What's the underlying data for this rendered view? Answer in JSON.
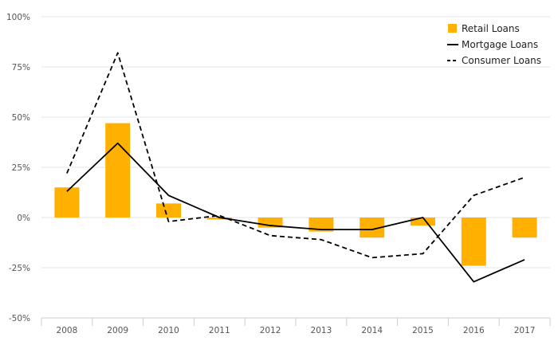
{
  "chart_data": {
    "type": "bar",
    "categories": [
      "2008",
      "2009",
      "2010",
      "2011",
      "2012",
      "2013",
      "2014",
      "2015",
      "2016",
      "2017"
    ],
    "ylim": [
      -50,
      100
    ],
    "yticks": [
      {
        "value": -50,
        "label": "-50%"
      },
      {
        "value": -25,
        "label": "-25%"
      },
      {
        "value": 0,
        "label": "0%"
      },
      {
        "value": 25,
        "label": "25%"
      },
      {
        "value": 50,
        "label": "50%"
      },
      {
        "value": 75,
        "label": "75%"
      },
      {
        "value": 100,
        "label": "100%"
      }
    ],
    "grid": true,
    "legend_position": "top-right",
    "series": [
      {
        "name": "Retail Loans",
        "kind": "bar",
        "color": "#FFB000",
        "values": [
          15,
          47,
          7,
          -1,
          -5,
          -7,
          -10,
          -4,
          -24,
          -10
        ]
      },
      {
        "name": "Mortgage Loans",
        "kind": "line",
        "style": "solid",
        "color": "#000000",
        "values": [
          13,
          37,
          11,
          0,
          -4,
          -6,
          -6,
          0,
          -32,
          -21
        ]
      },
      {
        "name": "Consumer Loans",
        "kind": "line",
        "style": "dashed",
        "color": "#000000",
        "values": [
          22,
          82,
          -2,
          1,
          -9,
          -11,
          -20,
          -18,
          11,
          20
        ]
      }
    ]
  }
}
